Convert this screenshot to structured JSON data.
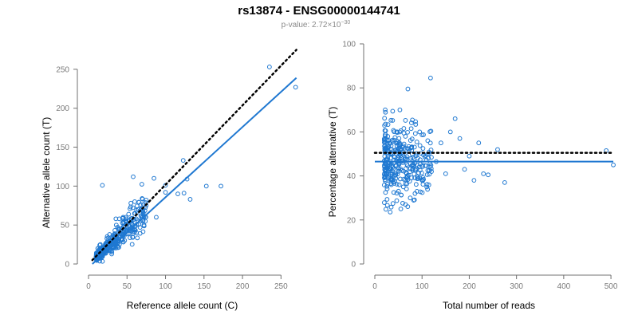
{
  "title": "rs13874 - ENSG00000144741",
  "pvalue": {
    "prefix": "p-value: 2.72×10",
    "exponent": "−30"
  },
  "colors": {
    "points": "#1f78d1",
    "fit": "#1f78d1",
    "reference": "#000000"
  },
  "chart_data": [
    {
      "type": "scatter",
      "xlabel": "Reference allele count (C)",
      "ylabel": "Alternative allele count (T)",
      "xlim": [
        0,
        260
      ],
      "ylim": [
        0,
        255
      ],
      "xticks": [
        "0",
        "50",
        "100",
        "150",
        "200",
        "250"
      ],
      "yticks": [
        "0",
        "50",
        "100",
        "150",
        "200",
        "250"
      ],
      "fit_line": {
        "style": "solid",
        "x": [
          5,
          270
        ],
        "y": [
          0,
          239
        ]
      },
      "reference_line": {
        "style": "dotted",
        "x": [
          5,
          270
        ],
        "y": [
          5,
          275
        ]
      },
      "highlight_points": {
        "x": [
          235,
          269,
          18,
          58,
          85,
          100,
          123,
          128,
          116,
          124,
          132,
          153,
          172,
          100,
          88,
          75,
          65,
          60,
          70,
          55,
          62,
          48,
          45,
          40,
          68,
          72
        ],
        "y": [
          253,
          227,
          101,
          112,
          110,
          101,
          133,
          109,
          90,
          91,
          83,
          100,
          100,
          92,
          60,
          82,
          70,
          80,
          60,
          78,
          58,
          56,
          60,
          58,
          62,
          50
        ]
      },
      "cloud": {
        "count": 340,
        "x_range": [
          10,
          75
        ],
        "ratio_center": 0.88,
        "ratio_spread": 0.45
      }
    },
    {
      "type": "scatter",
      "xlabel": "Total number of reads",
      "ylabel": "Percentage alternative (T)",
      "xlim": [
        0,
        510
      ],
      "ylim": [
        0,
        100
      ],
      "xticks": [
        "0",
        "100",
        "200",
        "300",
        "400",
        "500"
      ],
      "yticks": [
        "0",
        "20",
        "40",
        "60",
        "80",
        "100"
      ],
      "fit_line": {
        "style": "solid",
        "x": [
          0,
          505
        ],
        "y": [
          46.5,
          46.5
        ]
      },
      "reference_line": {
        "style": "dotted",
        "x": [
          0,
          505
        ],
        "y": [
          50.5,
          50.5
        ]
      },
      "highlight_points": {
        "x": [
          118,
          70,
          170,
          490,
          505,
          230,
          275,
          210,
          260,
          240,
          160,
          140,
          130,
          200,
          190,
          120,
          100,
          110,
          150,
          220,
          180,
          95,
          85,
          75,
          65,
          55
        ],
        "y": [
          84.5,
          79.5,
          66,
          51.5,
          45,
          41,
          37,
          38,
          52,
          40.5,
          60,
          55,
          46.5,
          49,
          43,
          42,
          38,
          35,
          41,
          55,
          57,
          60,
          32,
          30,
          27,
          25
        ]
      },
      "cloud": {
        "count": 340,
        "x_range": [
          20,
          120
        ],
        "pct_center": 46.5,
        "pct_spread": 8
      }
    }
  ]
}
